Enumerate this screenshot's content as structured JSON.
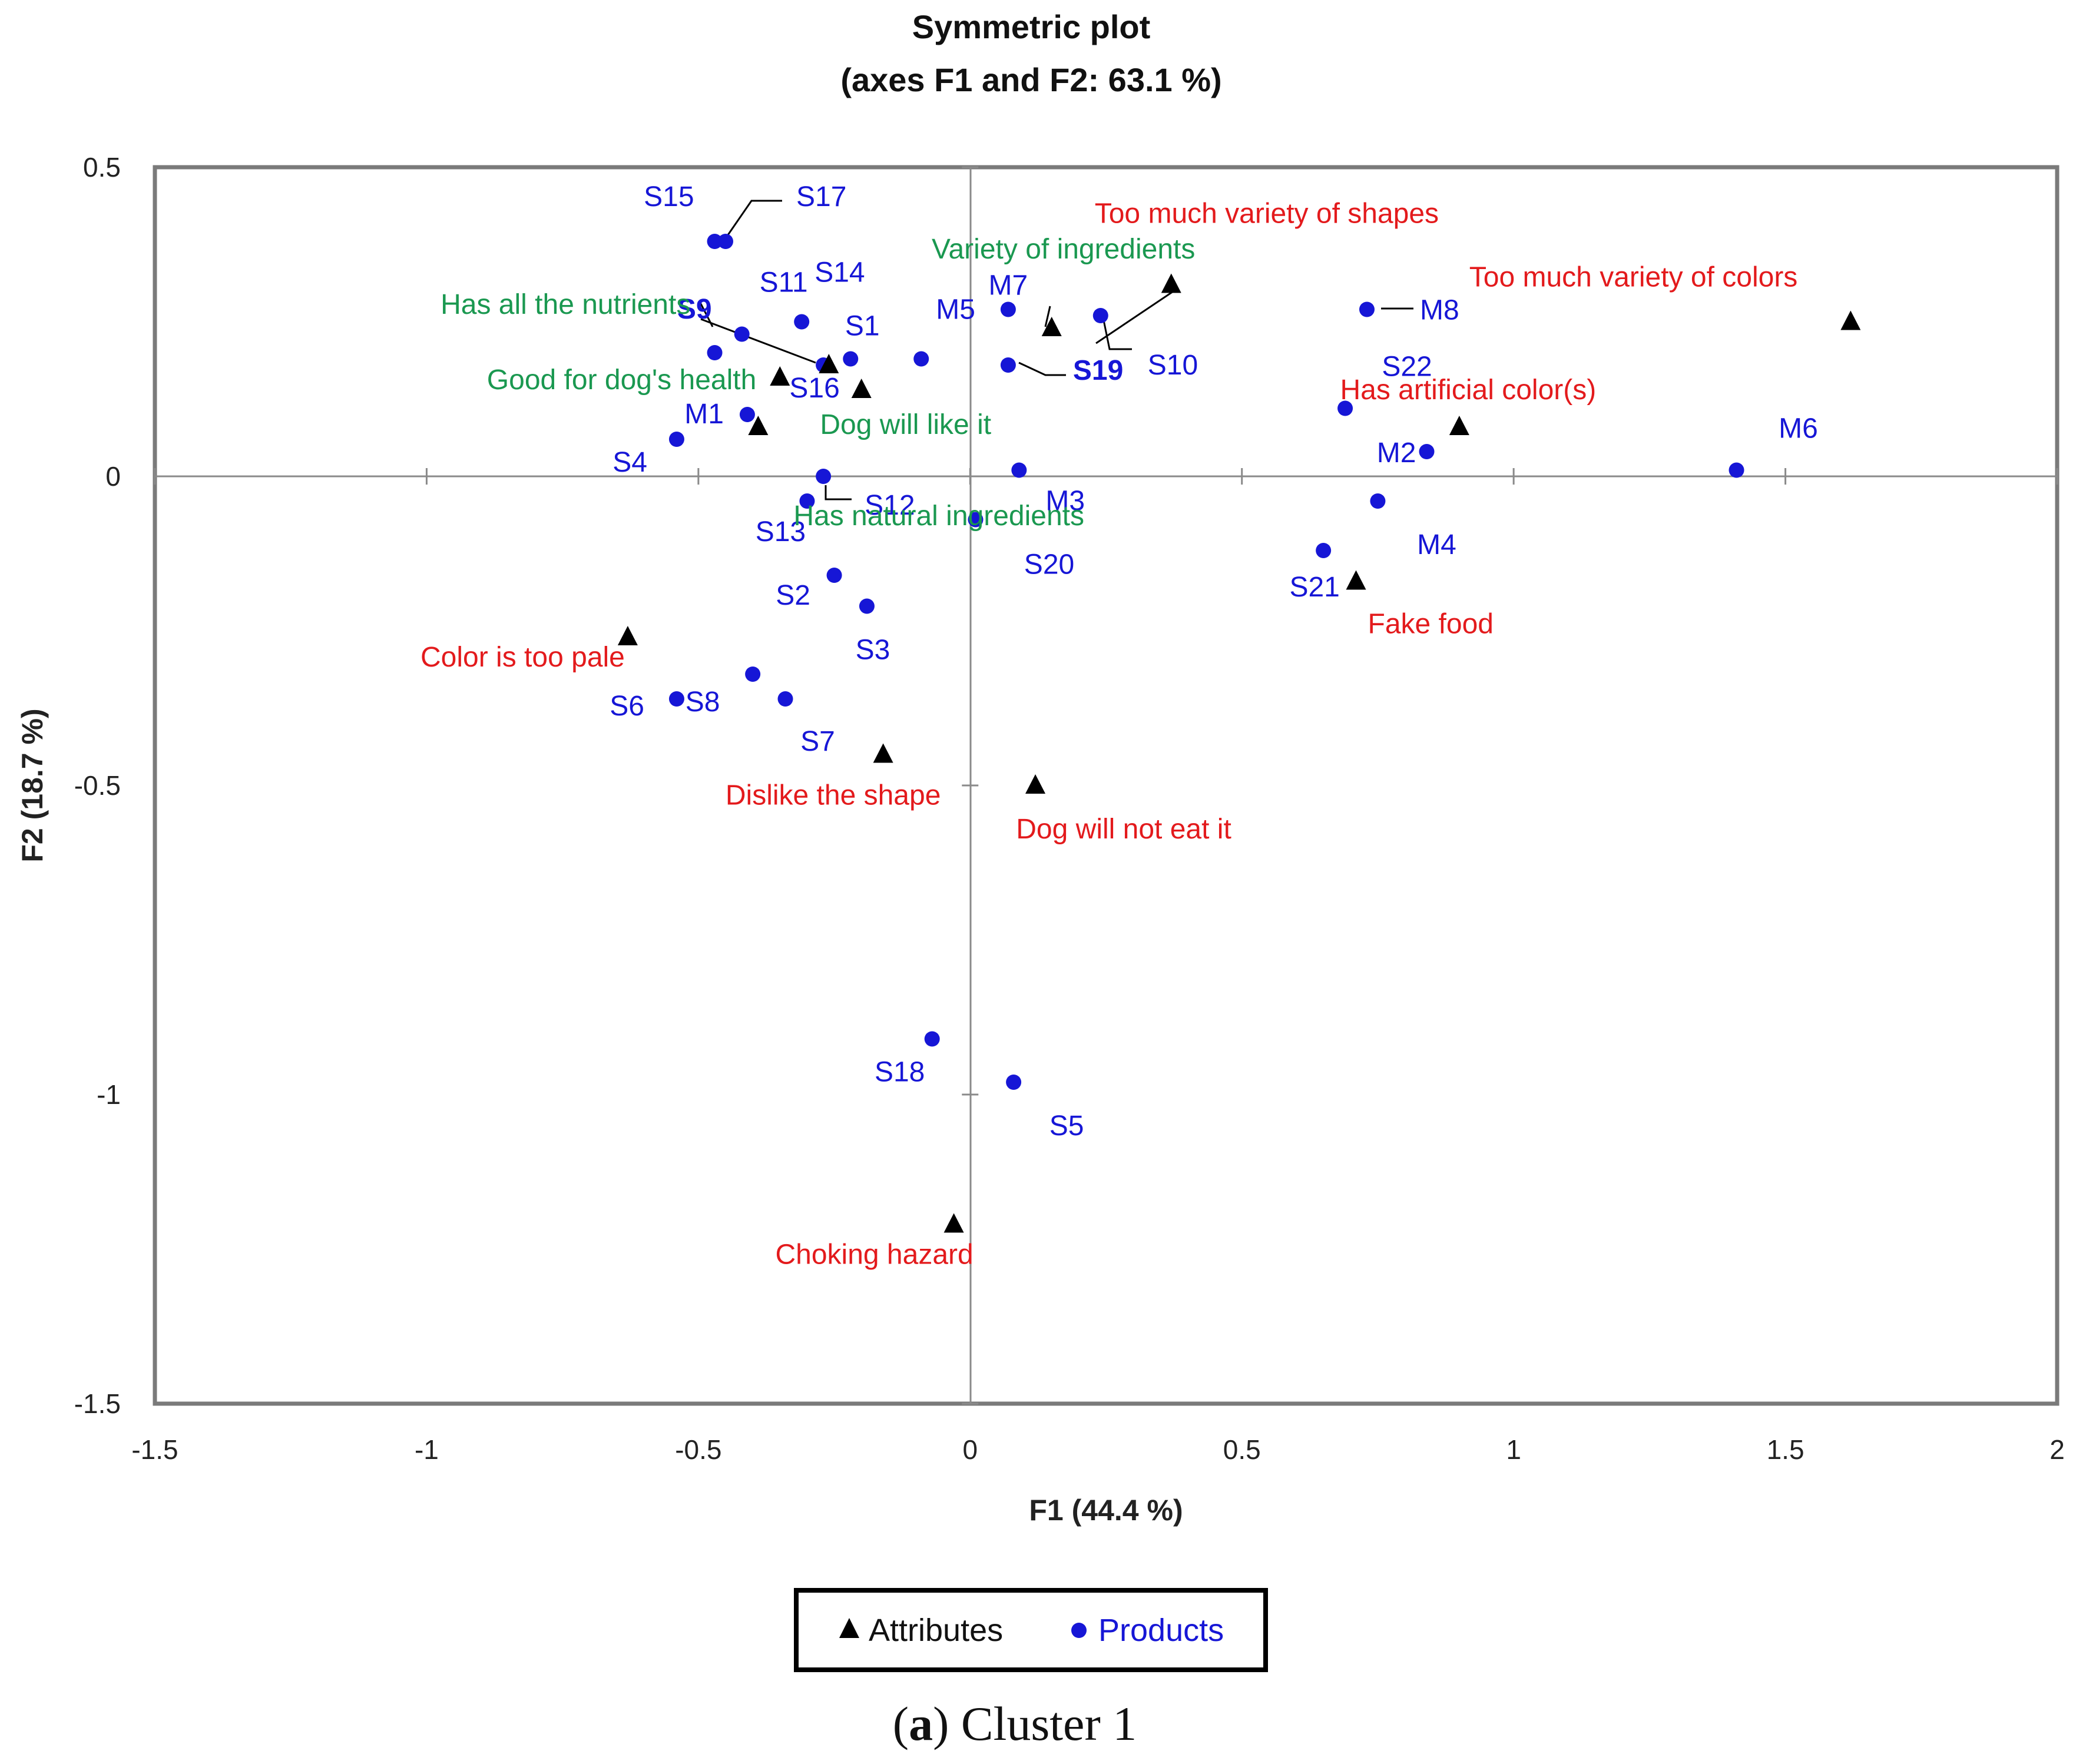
{
  "chart_data": {
    "type": "scatter",
    "title": "Symmetric plot",
    "subtitle": "(axes F1 and F2: 63.1 %)",
    "xlabel": "F1 (44.4 %)",
    "ylabel": "F2 (18.7 %)",
    "xlim": [
      -1.5,
      2
    ],
    "ylim": [
      -1.5,
      0.5
    ],
    "x_ticks": [
      "-1.5",
      "-1",
      "-0.5",
      "0",
      "0.5",
      "1",
      "1.5",
      "2"
    ],
    "y_ticks": [
      "0.5",
      "0",
      "-0.5",
      "-1",
      "-1.5"
    ],
    "legend": {
      "placement": "bottom",
      "attributes_label": "Attributes",
      "products_label": "Products"
    },
    "colors": {
      "products": "#1616d6",
      "favorable": "#1a9850",
      "unfavorable": "#e31a1c",
      "attributes": "#000000"
    },
    "series": [
      {
        "name": "Products",
        "points": [
          {
            "label": "S15",
            "x": -0.47,
            "y": 0.38
          },
          {
            "label": "S17",
            "x": -0.45,
            "y": 0.38
          },
          {
            "label": "S9",
            "x": -0.47,
            "y": 0.2
          },
          {
            "label": "S11",
            "x": -0.42,
            "y": 0.23
          },
          {
            "label": "S14",
            "x": -0.31,
            "y": 0.25
          },
          {
            "label": "S1",
            "x": -0.22,
            "y": 0.19
          },
          {
            "label": "S16",
            "x": -0.27,
            "y": 0.18
          },
          {
            "label": "M5",
            "x": -0.09,
            "y": 0.19
          },
          {
            "label": "M7",
            "x": 0.07,
            "y": 0.27
          },
          {
            "label": "S19",
            "x": 0.07,
            "y": 0.18
          },
          {
            "label": "S10",
            "x": 0.24,
            "y": 0.26
          },
          {
            "label": "M1",
            "x": -0.41,
            "y": 0.1
          },
          {
            "label": "S4",
            "x": -0.54,
            "y": 0.06
          },
          {
            "label": "S12",
            "x": -0.27,
            "y": 0.0
          },
          {
            "label": "S13",
            "x": -0.3,
            "y": -0.04
          },
          {
            "label": "M3",
            "x": 0.09,
            "y": 0.01
          },
          {
            "label": "S20",
            "x": 0.01,
            "y": -0.07
          },
          {
            "label": "S2",
            "x": -0.25,
            "y": -0.16
          },
          {
            "label": "S3",
            "x": -0.19,
            "y": -0.21
          },
          {
            "label": "S6",
            "x": -0.54,
            "y": -0.36
          },
          {
            "label": "S8",
            "x": -0.4,
            "y": -0.32
          },
          {
            "label": "S7",
            "x": -0.34,
            "y": -0.36
          },
          {
            "label": "S18",
            "x": -0.07,
            "y": -0.91
          },
          {
            "label": "S5",
            "x": 0.08,
            "y": -0.98
          },
          {
            "label": "M8",
            "x": 0.73,
            "y": 0.27
          },
          {
            "label": "S22",
            "x": 0.69,
            "y": 0.11
          },
          {
            "label": "M2",
            "x": 0.84,
            "y": 0.04
          },
          {
            "label": "M4",
            "x": 0.75,
            "y": -0.04
          },
          {
            "label": "S21",
            "x": 0.65,
            "y": -0.12
          },
          {
            "label": "M6",
            "x": 1.41,
            "y": 0.01
          }
        ]
      },
      {
        "name": "Attributes",
        "points": [
          {
            "label": "Has all the nutrients",
            "x": -0.26,
            "y": 0.18,
            "group": "favorable"
          },
          {
            "label": "Good for dog's health",
            "x": -0.35,
            "y": 0.16,
            "group": "favorable"
          },
          {
            "label": "Dog will like it",
            "x": -0.2,
            "y": 0.14,
            "group": "favorable"
          },
          {
            "label": "Has natural ingredients",
            "x": -0.39,
            "y": 0.08,
            "group": "favorable"
          },
          {
            "label": "Variety of ingredients",
            "x": 0.15,
            "y": 0.24,
            "group": "favorable"
          },
          {
            "label": "Too much variety of shapes",
            "x": 0.37,
            "y": 0.31,
            "group": "unfavorable"
          },
          {
            "label": "Too much variety of colors",
            "x": 1.62,
            "y": 0.25,
            "group": "unfavorable"
          },
          {
            "label": "Has artificial color(s)",
            "x": 0.9,
            "y": 0.08,
            "group": "unfavorable"
          },
          {
            "label": "Fake food",
            "x": 0.71,
            "y": -0.17,
            "group": "unfavorable"
          },
          {
            "label": "Color is too pale",
            "x": -0.63,
            "y": -0.26,
            "group": "unfavorable"
          },
          {
            "label": "Dislike the shape",
            "x": -0.16,
            "y": -0.45,
            "group": "unfavorable"
          },
          {
            "label": "Dog will not eat it",
            "x": 0.12,
            "y": -0.5,
            "group": "unfavorable"
          },
          {
            "label": "Choking hazard",
            "x": -0.03,
            "y": -1.21,
            "group": "unfavorable"
          }
        ]
      }
    ],
    "caption": {
      "letter": "a",
      "rest": "Cluster 1"
    }
  }
}
